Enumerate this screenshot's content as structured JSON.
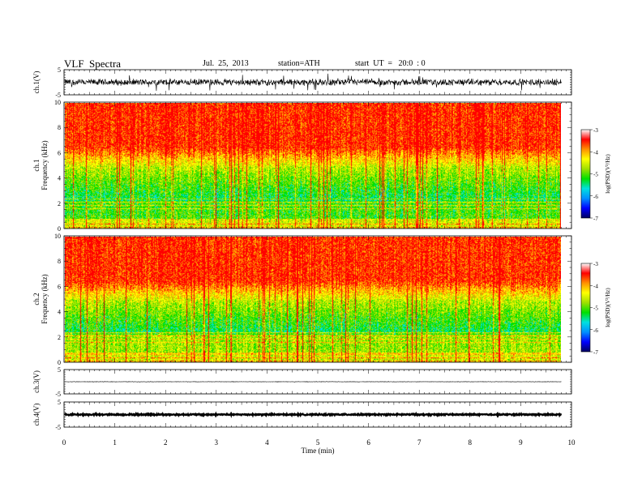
{
  "header": {
    "title": "VLF  Spectra",
    "date": "Jul.  25,  2013",
    "station": "station=ATH",
    "start": "start  UT  =   20:0  : 0"
  },
  "chart_data": [
    {
      "type": "line",
      "name": "ch1-waveform",
      "ylabel": "ch.1(V)",
      "ylim": [
        -5,
        5
      ],
      "yticks": [
        "5",
        "-5"
      ],
      "mean": 0,
      "amplitude": 1.5
    },
    {
      "type": "heatmap",
      "name": "ch1-spectrogram",
      "ylabel_top": "ch.1",
      "ylabel": "Frequency  (kHz)",
      "ylim": [
        0,
        10
      ],
      "yticks": [
        "0",
        "2",
        "4",
        "6",
        "8",
        "10"
      ],
      "colorbar": {
        "label": "log(PSD)(V²/Hz)",
        "range": [
          -7,
          -3
        ],
        "ticks": [
          "-3",
          "-4",
          "-5",
          "-6",
          "-7"
        ],
        "colors": [
          "#000060",
          "#0000ff",
          "#0090ff",
          "#00e0e0",
          "#00e000",
          "#a0e000",
          "#ffff00",
          "#ff9000",
          "#ff0000",
          "#ffffff"
        ]
      }
    },
    {
      "type": "heatmap",
      "name": "ch2-spectrogram",
      "ylabel_top": "ch.2",
      "ylabel": "Frequency  (kHz)",
      "ylim": [
        0,
        10
      ],
      "yticks": [
        "0",
        "2",
        "4",
        "6",
        "8",
        "10"
      ],
      "colorbar": {
        "label": "log(PSD)(V²/Hz)",
        "range": [
          -7,
          -3
        ],
        "ticks": [
          "-3",
          "-4",
          "-5",
          "-6",
          "-7"
        ]
      }
    },
    {
      "type": "line",
      "name": "ch3-waveform",
      "ylabel": "ch.3(V)",
      "ylim": [
        -5,
        5
      ],
      "yticks": [
        "5",
        "-5"
      ],
      "mean": 0,
      "amplitude": 0.1
    },
    {
      "type": "line",
      "name": "ch4-waveform",
      "ylabel": "ch.4(V)",
      "ylim": [
        -5,
        5
      ],
      "yticks": [
        "5",
        "-5"
      ],
      "mean": 0,
      "amplitude": 0.3
    }
  ],
  "xaxis": {
    "label": "Time  (min)",
    "range": [
      0,
      10
    ],
    "ticks": [
      "0",
      "1",
      "2",
      "3",
      "4",
      "5",
      "6",
      "7",
      "8",
      "9",
      "10"
    ],
    "data_end": 9.8
  }
}
